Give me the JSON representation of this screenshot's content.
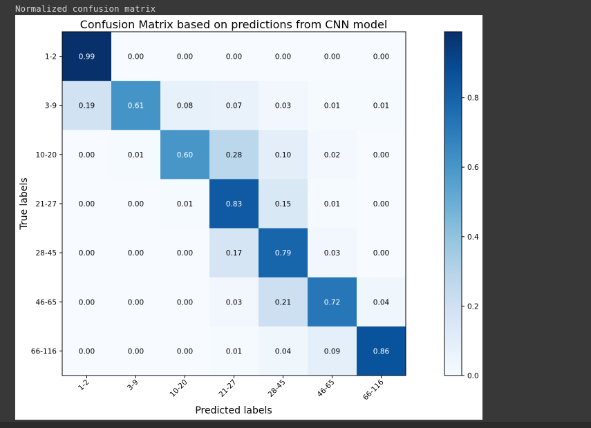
{
  "output_text": "Normalized confusion matrix",
  "chart_data": {
    "type": "heatmap",
    "title": "Confusion Matrix based on predictions from CNN model",
    "xlabel": "Predicted labels",
    "ylabel": "True labels",
    "x_categories": [
      "1-2",
      "3-9",
      "10-20",
      "21-27",
      "28-45",
      "46-65",
      "66-116"
    ],
    "y_categories": [
      "1-2",
      "3-9",
      "10-20",
      "21-27",
      "28-45",
      "46-65",
      "66-116"
    ],
    "values": [
      [
        0.99,
        0.0,
        0.0,
        0.0,
        0.0,
        0.0,
        0.0
      ],
      [
        0.19,
        0.61,
        0.08,
        0.07,
        0.03,
        0.01,
        0.01
      ],
      [
        0.0,
        0.01,
        0.6,
        0.28,
        0.1,
        0.02,
        0.0
      ],
      [
        0.0,
        0.0,
        0.01,
        0.83,
        0.15,
        0.01,
        0.0
      ],
      [
        0.0,
        0.0,
        0.0,
        0.17,
        0.79,
        0.03,
        0.0
      ],
      [
        0.0,
        0.0,
        0.0,
        0.03,
        0.21,
        0.72,
        0.04
      ],
      [
        0.0,
        0.0,
        0.0,
        0.01,
        0.04,
        0.09,
        0.86
      ]
    ],
    "colormap": "Blues",
    "color_range": [
      0.0,
      0.99
    ],
    "colorbar_ticks": [
      "0.0",
      "0.2",
      "0.4",
      "0.6",
      "0.8"
    ],
    "colorbar_tick_values": [
      0.0,
      0.2,
      0.4,
      0.6,
      0.8
    ],
    "text_threshold": 0.5
  }
}
